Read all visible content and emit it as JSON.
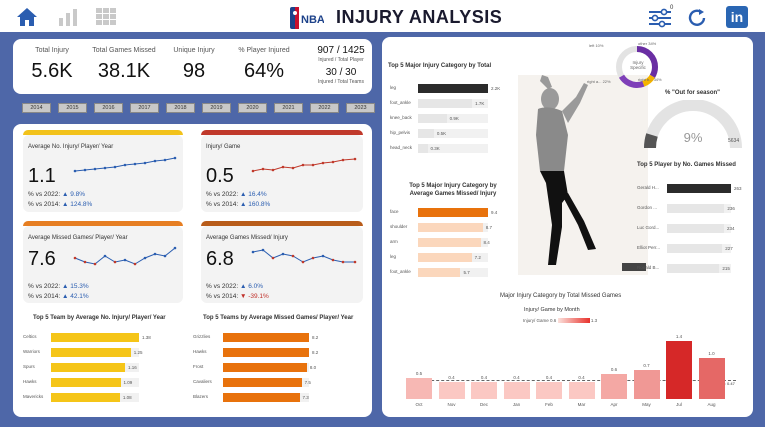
{
  "header": {
    "title": "INJURY ANALYSIS",
    "logo_text": "NBA",
    "filter_badge": "0",
    "linkedin_label": "in"
  },
  "kpis": {
    "total_injury": {
      "label": "Total Injury",
      "value": "5.6K"
    },
    "total_games_missed": {
      "label": "Total Games Missed",
      "value": "38.1K"
    },
    "unique_injury": {
      "label": "Unique Injury",
      "value": "98"
    },
    "pct_player_injured": {
      "label": "% Player Injured",
      "value": "64%"
    },
    "injured_ratio": {
      "value": "907 / 1425",
      "sub": "Injured / Total Player"
    },
    "teams_ratio": {
      "value": "30 / 30",
      "sub": "Injured / Total Teams"
    }
  },
  "years": [
    "2014",
    "2015",
    "2016",
    "2017",
    "2018",
    "2019",
    "2020",
    "2021",
    "2022",
    "2023"
  ],
  "cards": {
    "avg_injury": {
      "title": "Average No. Injury/ Player/ Year",
      "value": "1.1",
      "vs2022_label": "% vs 2022:",
      "vs2022": "▲ 9.8%",
      "vs2014_label": "% vs 2014:",
      "vs2014": "▲ 124.8%",
      "accent": "#f2c21b"
    },
    "injury_game": {
      "title": "Injury/ Game",
      "value": "0.5",
      "vs2022_label": "% vs 2022:",
      "vs2022": "▲ 16.4%",
      "vs2014_label": "% vs 2014:",
      "vs2014": "▲ 160.8%",
      "accent": "#c0392b"
    },
    "avg_missed": {
      "title": "Average Missed Games/ Player/ Year",
      "value": "7.6",
      "vs2022_label": "% vs 2022:",
      "vs2022": "▲ 15.3%",
      "vs2014_label": "% vs 2014:",
      "vs2014": "▲ 42.1%",
      "accent": "#e67e22"
    },
    "avg_missed_injury": {
      "title": "Average Games Missed/ Injury",
      "value": "6.8",
      "vs2022_label": "% vs 2022:",
      "vs2022": "▲ 6.0%",
      "vs2014_label": "% vs 2014:",
      "vs2014": "▼ -39.1%",
      "accent": "#b85c1a"
    }
  },
  "top5_team_injury": {
    "title": "Top 5 Team by Average No. Injury/ Player/ Year",
    "color": "#f5c518",
    "rows": [
      {
        "label": "Celtics",
        "value": 1.38,
        "text": "1.38"
      },
      {
        "label": "Warriors",
        "value": 1.25,
        "text": "1.25"
      },
      {
        "label": "Spurs",
        "value": 1.16,
        "text": "1.16"
      },
      {
        "label": "Hawks",
        "value": 1.09,
        "text": "1.09"
      },
      {
        "label": "Mavericks",
        "value": 1.08,
        "text": "1.08"
      }
    ]
  },
  "top5_team_missed": {
    "title": "Top 5 Teams by Average Missed Games/ Player/ Year",
    "color": "#e8720c",
    "rows": [
      {
        "label": "Grizzlies",
        "value": 8.2,
        "text": "8.2"
      },
      {
        "label": "Hawks",
        "value": 8.2,
        "text": "8.2"
      },
      {
        "label": "Frost",
        "value": 8.0,
        "text": "8.0"
      },
      {
        "label": "Cavaliers",
        "value": 7.5,
        "text": "7.5"
      },
      {
        "label": "Blazers",
        "value": 7.3,
        "text": "7.3"
      }
    ]
  },
  "top5_category_total": {
    "title": "Top 5 Major Injury Category by Total",
    "rows": [
      {
        "label": "leg",
        "value": 2.2,
        "text": "2.2K",
        "color": "#2b2b2b"
      },
      {
        "label": "foot_ankle",
        "value": 1.7,
        "text": "1.7K",
        "color": "#e6e6e6"
      },
      {
        "label": "knee_back",
        "value": 0.9,
        "text": "0.9K",
        "color": "#e6e6e6"
      },
      {
        "label": "hip_pelvis",
        "value": 0.5,
        "text": "0.5K",
        "color": "#e6e6e6"
      },
      {
        "label": "head_neck",
        "value": 0.3,
        "text": "0.3K",
        "color": "#e6e6e6"
      }
    ]
  },
  "top5_category_missed": {
    "title": "Top 5 Major Injury Category by Average Games Missed/ Injury",
    "rows": [
      {
        "label": "face",
        "value": 9.4,
        "text": "9.4",
        "color": "#e8720c"
      },
      {
        "label": "shoulder",
        "value": 8.7,
        "text": "8.7",
        "color": "#fbd7bc"
      },
      {
        "label": "arm",
        "value": 8.4,
        "text": "8.4",
        "color": "#fbd7bc"
      },
      {
        "label": "leg",
        "value": 7.2,
        "text": "7.2",
        "color": "#fbd7bc"
      },
      {
        "label": "foot_ankle",
        "value": 5.7,
        "text": "5.7",
        "color": "#fbd7bc"
      }
    ]
  },
  "donut": {
    "center": "Injury Specific",
    "labels": [
      "left 10%",
      "other 34%",
      "right a... 22%",
      "right b... 34%"
    ]
  },
  "gauge": {
    "title": "% \"Out for season\"",
    "value": "9%",
    "min": "0",
    "max": "5634",
    "fraction": 0.09
  },
  "top5_player": {
    "title": "Top 5 Player by No. Games Missed",
    "rows": [
      {
        "label": "Gerald H...",
        "value": 263,
        "text": "263",
        "color": "#2b2b2b"
      },
      {
        "label": "Gordon ...",
        "value": 236,
        "text": "236",
        "color": "#e6e6e6"
      },
      {
        "label": "Luc Gord...",
        "value": 234,
        "text": "234",
        "color": "#e6e6e6"
      },
      {
        "label": "Elliot Perr...",
        "value": 227,
        "text": "227",
        "color": "#e6e6e6"
      },
      {
        "label": "Ronald B...",
        "value": 215,
        "text": "215",
        "color": "#e6e6e6"
      }
    ]
  },
  "figure_caption": "Major Injury Category by Total Missed Games",
  "monthly": {
    "title": "Injury/ Game by Month",
    "legend_label": "Injury/ Game",
    "legend_min": "0.6",
    "legend_max": "1.3",
    "average_label": "Average: 0.47",
    "months": [
      "Oct",
      "Nov",
      "Dec",
      "Jan",
      "Feb",
      "Mar",
      "Apr",
      "May",
      "Jul",
      "Aug"
    ],
    "values": [
      0.5,
      0.4,
      0.4,
      0.4,
      0.4,
      0.4,
      0.6,
      0.7,
      1.4,
      1.0
    ],
    "labels": [
      "0.5",
      "0.4",
      "0.4",
      "0.4",
      "0.4",
      "0.4",
      "0.6",
      "0.7",
      "1.4",
      "1.0"
    ]
  },
  "chart_data": {
    "type": "bar",
    "title": "Injury/ Game by Month",
    "categories": [
      "Oct",
      "Nov",
      "Dec",
      "Jan",
      "Feb",
      "Mar",
      "Apr",
      "May",
      "Jul",
      "Aug"
    ],
    "values": [
      0.5,
      0.4,
      0.4,
      0.4,
      0.4,
      0.4,
      0.6,
      0.7,
      1.4,
      1.0
    ],
    "ylim": [
      0,
      1.5
    ]
  }
}
